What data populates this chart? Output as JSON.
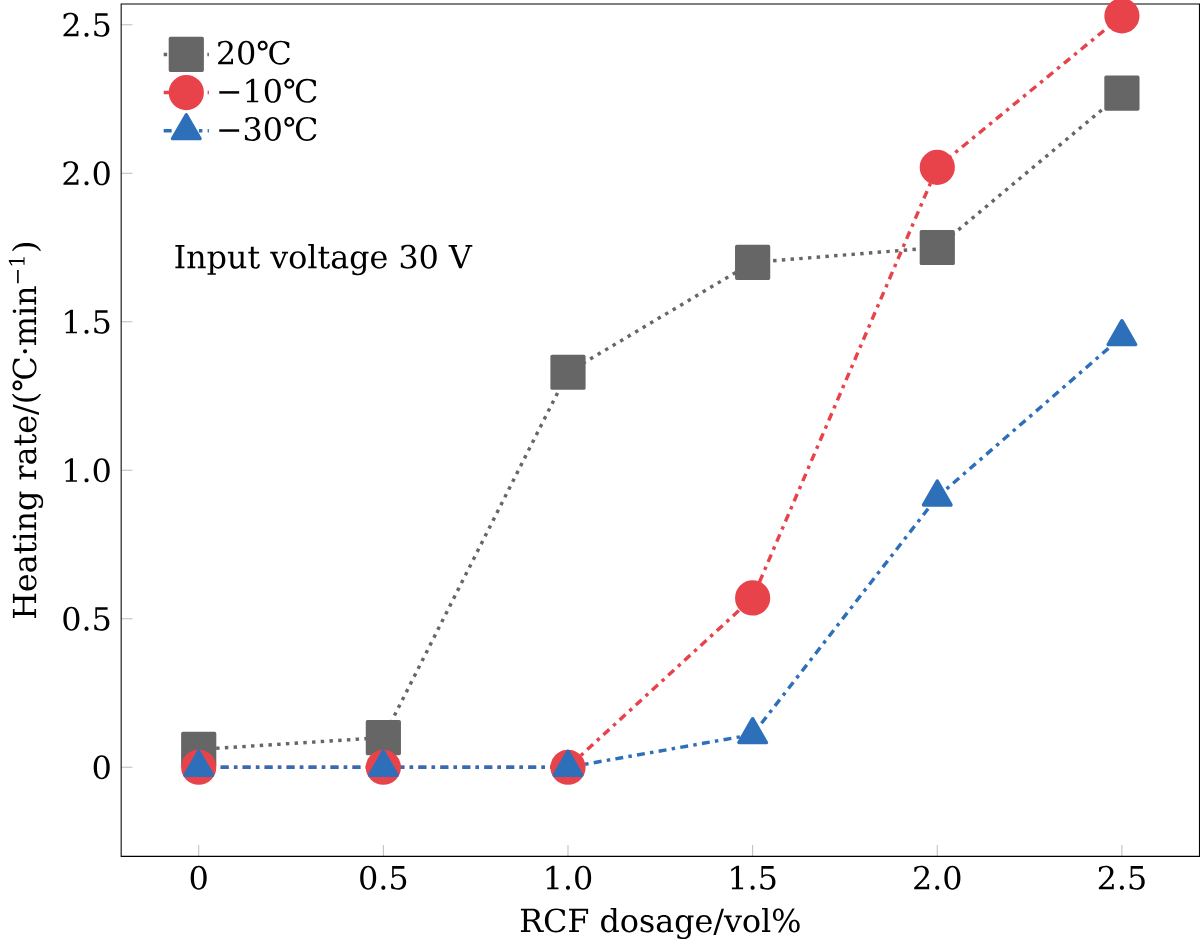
{
  "chart_data": {
    "type": "line",
    "xlabel": "RCF dosage/vol%",
    "ylabel": "Heating rate/(℃·min$^{−1}$)",
    "x": [
      0,
      0.5,
      1.0,
      1.5,
      2.0,
      2.5
    ],
    "series": [
      {
        "name": "20℃",
        "color": "#666666",
        "values": [
          0.06,
          0.1,
          1.33,
          1.7,
          1.75,
          2.27
        ],
        "marker": "square",
        "line_style": "dotted"
      },
      {
        "name": "−10℃",
        "color": "#e8434a",
        "values": [
          0,
          0,
          0,
          0.57,
          2.02,
          2.53
        ],
        "marker": "circle",
        "line_style": "dashdot"
      },
      {
        "name": "−30℃",
        "color": "#2e6fba",
        "values": [
          0,
          0,
          0,
          0.11,
          0.91,
          1.45
        ],
        "marker": "triangle",
        "line_style": "dashdot"
      }
    ],
    "annotations": [
      "Input voltage  30 V"
    ],
    "xlim": [
      -0.21,
      2.71
    ],
    "ylim": [
      -0.3,
      2.57
    ],
    "xticks": [
      0,
      0.5,
      {
        "value": 1,
        "label": "1.0"
      },
      1.5,
      {
        "value": 2,
        "label": "2.0"
      },
      2.5
    ],
    "yticks": [
      0,
      0.5,
      {
        "value": 1,
        "label": "1.0"
      },
      1.5,
      {
        "value": 2,
        "label": "2.0"
      },
      2.5
    ],
    "legend": "top left",
    "grid": false
  }
}
